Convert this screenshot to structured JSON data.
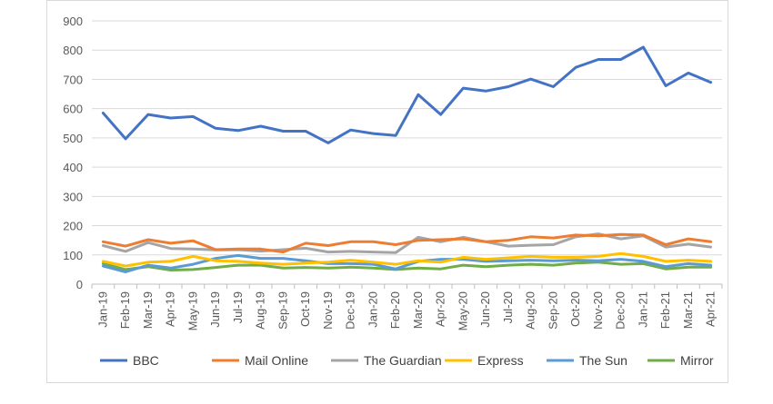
{
  "chart_data": {
    "type": "line",
    "title": "",
    "xlabel": "",
    "ylabel": "",
    "ylim": [
      0,
      900
    ],
    "yticks": [
      0,
      100,
      200,
      300,
      400,
      500,
      600,
      700,
      800,
      900
    ],
    "grid": "horizontal",
    "legend_position": "bottom",
    "categories": [
      "Jan-19",
      "Feb-19",
      "Mar-19",
      "Apr-19",
      "May-19",
      "Jun-19",
      "Jul-19",
      "Aug-19",
      "Sep-19",
      "Oct-19",
      "Nov-19",
      "Dec-19",
      "Jan-20",
      "Feb-20",
      "Mar-20",
      "Apr-20",
      "May-20",
      "Jun-20",
      "Jul-20",
      "Aug-20",
      "Sep-20",
      "Oct-20",
      "Nov-20",
      "Dec-20",
      "Jan-21",
      "Feb-21",
      "Mar-21",
      "Apr-21"
    ],
    "series": [
      {
        "name": "BBC",
        "color": "#4472c4",
        "values": [
          585,
          497,
          580,
          568,
          573,
          533,
          525,
          540,
          523,
          523,
          483,
          527,
          515,
          508,
          648,
          580,
          670,
          660,
          675,
          701,
          675,
          741,
          768,
          768,
          810,
          678,
          722,
          690
        ]
      },
      {
        "name": "Mail Online",
        "color": "#ed7d31",
        "values": [
          145,
          130,
          152,
          140,
          148,
          118,
          120,
          120,
          110,
          140,
          132,
          145,
          145,
          135,
          150,
          152,
          155,
          145,
          150,
          162,
          158,
          168,
          165,
          170,
          168,
          135,
          155,
          145
        ]
      },
      {
        "name": "The Guardian",
        "color": "#a5a5a5",
        "values": [
          132,
          112,
          142,
          122,
          120,
          117,
          118,
          113,
          118,
          123,
          110,
          112,
          110,
          108,
          160,
          145,
          160,
          145,
          130,
          133,
          135,
          162,
          172,
          155,
          165,
          127,
          137,
          127
        ]
      },
      {
        "name": "Express",
        "color": "#ffc000",
        "values": [
          78,
          62,
          75,
          78,
          95,
          80,
          78,
          72,
          68,
          72,
          75,
          82,
          75,
          68,
          80,
          75,
          92,
          85,
          90,
          95,
          92,
          92,
          95,
          105,
          95,
          78,
          82,
          78
        ]
      },
      {
        "name": "The Sun",
        "color": "#5b9bd5",
        "values": [
          62,
          42,
          65,
          55,
          68,
          88,
          98,
          88,
          88,
          80,
          70,
          70,
          68,
          52,
          78,
          85,
          85,
          78,
          80,
          82,
          80,
          82,
          80,
          85,
          78,
          60,
          70,
          65
        ]
      },
      {
        "name": "Mirror",
        "color": "#70ad47",
        "values": [
          70,
          50,
          60,
          48,
          50,
          57,
          65,
          65,
          55,
          57,
          55,
          58,
          55,
          50,
          55,
          52,
          65,
          60,
          65,
          68,
          65,
          72,
          75,
          68,
          70,
          52,
          58,
          58
        ]
      }
    ]
  }
}
